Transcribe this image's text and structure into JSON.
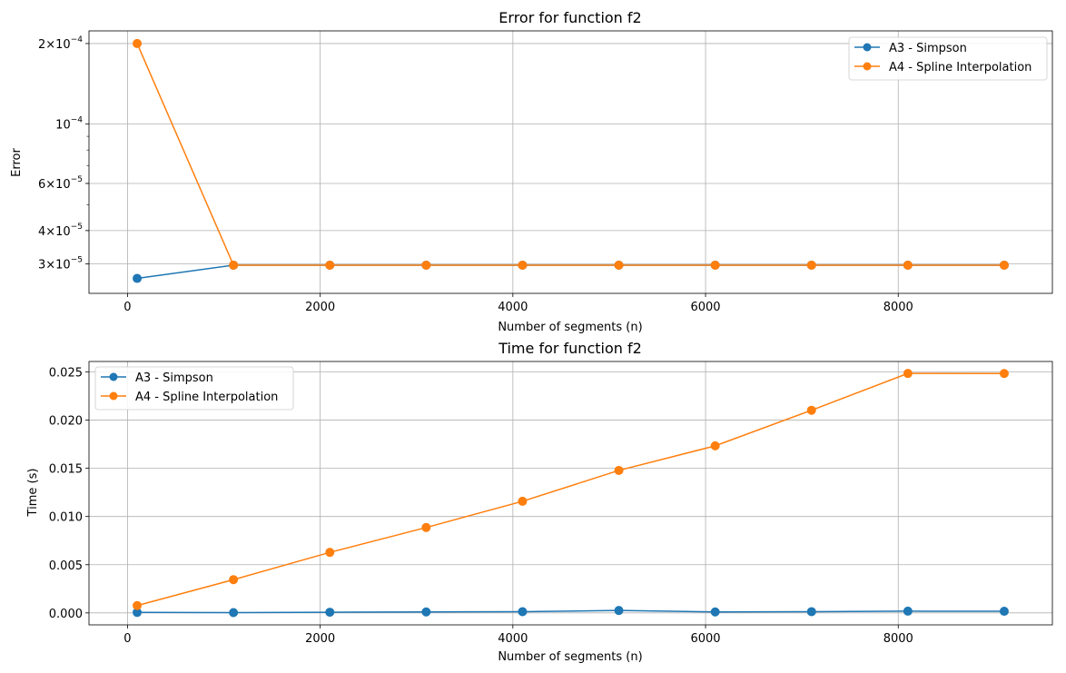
{
  "figure": {
    "background": "#ffffff"
  },
  "colors": {
    "A3": "#1f77b4",
    "A4": "#ff7f0e",
    "grid": "#b0b0b0"
  },
  "chart_data": [
    {
      "type": "line",
      "title": "Error for function f2",
      "xlabel": "Number of segments (n)",
      "ylabel": "Error",
      "yscale": "log",
      "grid": true,
      "legend_position": "top-right",
      "xlim": [
        -400,
        9600
      ],
      "ylim": [
        2.33e-05,
        0.000223
      ],
      "x_ticks": [
        0,
        2000,
        4000,
        6000,
        8000
      ],
      "x_tick_labels": [
        "0",
        "2000",
        "4000",
        "6000",
        "8000"
      ],
      "y_ticks": [
        0.0002,
        0.0001,
        6e-05,
        4e-05,
        3e-05
      ],
      "y_tick_labels": [
        {
          "mant": "2×10",
          "exp": "−4"
        },
        {
          "mant": "10",
          "exp": "−4"
        },
        {
          "mant": "6×10",
          "exp": "−5"
        },
        {
          "mant": "4×10",
          "exp": "−5"
        },
        {
          "mant": "3×10",
          "exp": "−5"
        }
      ],
      "x": [
        100,
        1100,
        2100,
        3100,
        4100,
        5100,
        6100,
        7100,
        8100,
        9100
      ],
      "series": [
        {
          "name": "A3 - Simpson",
          "color": "#1f77b4",
          "values": [
            2.65e-05,
            2.97e-05,
            2.97e-05,
            2.97e-05,
            2.97e-05,
            2.97e-05,
            2.97e-05,
            2.97e-05,
            2.97e-05,
            2.97e-05
          ]
        },
        {
          "name": "A4 - Spline Interpolation",
          "color": "#ff7f0e",
          "values": [
            0.0002,
            2.97e-05,
            2.97e-05,
            2.97e-05,
            2.97e-05,
            2.97e-05,
            2.97e-05,
            2.97e-05,
            2.97e-05,
            2.97e-05
          ]
        }
      ]
    },
    {
      "type": "line",
      "title": "Time for function f2",
      "xlabel": "Number of segments (n)",
      "ylabel": "Time (s)",
      "yscale": "linear",
      "grid": true,
      "legend_position": "top-left",
      "xlim": [
        -400,
        9600
      ],
      "ylim": [
        -0.00124,
        0.02608
      ],
      "x_ticks": [
        0,
        2000,
        4000,
        6000,
        8000
      ],
      "x_tick_labels": [
        "0",
        "2000",
        "4000",
        "6000",
        "8000"
      ],
      "y_ticks": [
        0,
        0.005,
        0.01,
        0.015,
        0.02,
        0.025
      ],
      "y_tick_labels": [
        "0.000",
        "0.005",
        "0.010",
        "0.015",
        "0.020",
        "0.025"
      ],
      "x": [
        100,
        1100,
        2100,
        3100,
        4100,
        5100,
        6100,
        7100,
        8100,
        9100
      ],
      "series": [
        {
          "name": "A3 - Simpson",
          "color": "#1f77b4",
          "values": [
            5e-05,
            3e-05,
            7e-05,
            0.0001,
            0.00013,
            0.00025,
            0.0001,
            0.00013,
            0.00018,
            0.00017
          ]
        },
        {
          "name": "A4 - Spline Interpolation",
          "color": "#ff7f0e",
          "values": [
            0.00076,
            0.00345,
            0.00628,
            0.00886,
            0.01158,
            0.01478,
            0.01733,
            0.02102,
            0.02484,
            0.02483
          ]
        }
      ]
    }
  ]
}
